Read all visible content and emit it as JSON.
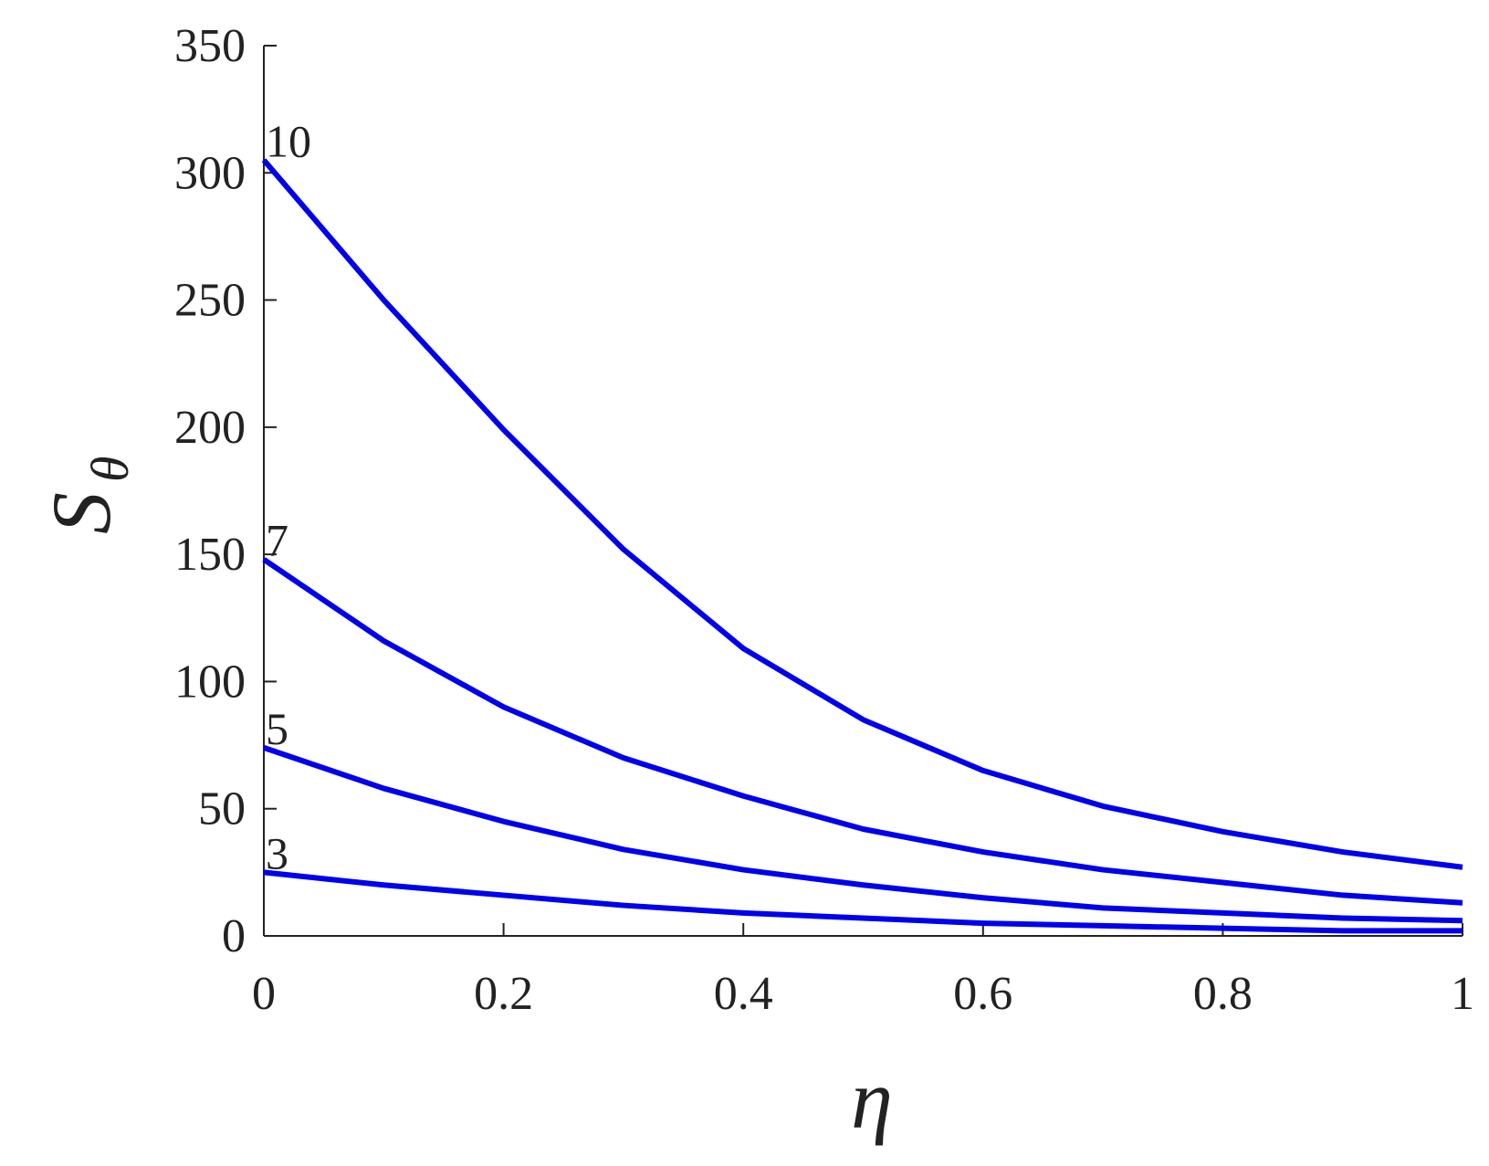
{
  "chart_data": {
    "type": "line",
    "xlabel": "η",
    "ylabel": "S",
    "ylabel_sub": "θ",
    "x": [
      0,
      0.1,
      0.2,
      0.3,
      0.4,
      0.5,
      0.6,
      0.7,
      0.8,
      0.9,
      1
    ],
    "series": [
      {
        "name": "10",
        "color": "#0000ee",
        "values": [
          305,
          250,
          199,
          152,
          113,
          85,
          65,
          51,
          41,
          33,
          27
        ]
      },
      {
        "name": "7",
        "color": "#0000ee",
        "values": [
          148,
          116,
          90,
          70,
          55,
          42,
          33,
          26,
          21,
          16,
          13
        ]
      },
      {
        "name": "5",
        "color": "#0000ee",
        "values": [
          74,
          58,
          45,
          34,
          26,
          20,
          15,
          11,
          9,
          7,
          6
        ]
      },
      {
        "name": "3",
        "color": "#0000ee",
        "values": [
          25,
          20,
          16,
          12,
          9,
          7,
          5,
          4,
          3,
          2,
          2
        ]
      }
    ],
    "xlim": [
      0,
      1
    ],
    "xticks": [
      0,
      0.2,
      0.4,
      0.6,
      0.8,
      1
    ],
    "ylim": [
      0,
      350
    ],
    "yticks": [
      0,
      50,
      100,
      150,
      200,
      250,
      300,
      350
    ],
    "grid": false
  }
}
